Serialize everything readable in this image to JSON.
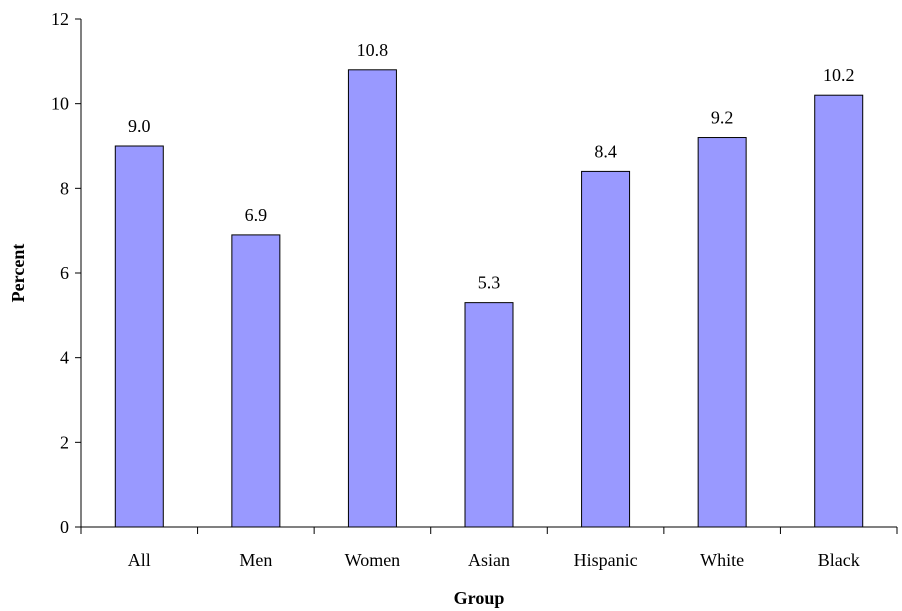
{
  "chart_data": {
    "type": "bar",
    "title": "",
    "xlabel": "Group",
    "ylabel": "Percent",
    "categories": [
      "All",
      "Men",
      "Women",
      "Asian",
      "Hispanic",
      "White",
      "Black"
    ],
    "values": [
      9.0,
      6.9,
      10.8,
      5.3,
      8.4,
      9.2,
      10.2
    ],
    "value_labels": [
      "9.0",
      "6.9",
      "10.8",
      "5.3",
      "8.4",
      "9.2",
      "10.2"
    ],
    "ylim": [
      0,
      12
    ],
    "yticks": [
      0,
      2,
      4,
      6,
      8,
      10,
      12
    ],
    "grid": false,
    "legend": "none",
    "bar_color": "#9999ff",
    "bar_edge_color": "#000000"
  }
}
